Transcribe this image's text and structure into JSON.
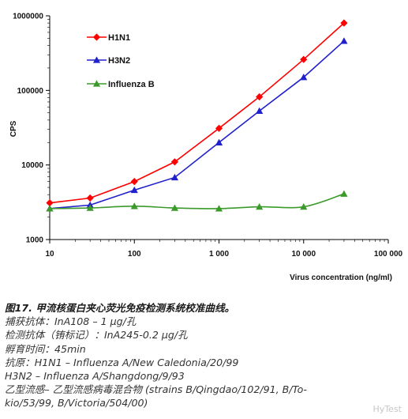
{
  "chart_data": {
    "type": "line",
    "x_scale": "log",
    "y_scale": "log",
    "xlim": [
      10,
      100000
    ],
    "ylim": [
      1000,
      1000000
    ],
    "x_ticks": [
      "10",
      "100",
      "1 000",
      "10 000",
      "100 000"
    ],
    "y_ticks": [
      "1000000",
      "100000",
      "10000",
      "1000"
    ],
    "xlabel": "Virus concentration (ng/ml)",
    "ylabel": "CPS",
    "legend_position": "top-left",
    "grid": false,
    "series": [
      {
        "name": "H1N1",
        "color": "#ff0000",
        "marker": "diamond",
        "x": [
          10,
          30,
          100,
          300,
          1000,
          3000,
          10000,
          30000
        ],
        "y": [
          3100,
          3600,
          6000,
          11000,
          31000,
          82000,
          260000,
          800000
        ]
      },
      {
        "name": "H3N2",
        "color": "#2020cc",
        "marker": "triangle",
        "x": [
          10,
          30,
          100,
          300,
          1000,
          3000,
          10000,
          30000
        ],
        "y": [
          2600,
          2900,
          4600,
          6800,
          20000,
          53000,
          150000,
          460000
        ]
      },
      {
        "name": "Influenza B",
        "color": "#3a9a2a",
        "marker": "triangle",
        "x": [
          10,
          30,
          100,
          300,
          1000,
          3000,
          10000,
          30000
        ],
        "y": [
          2600,
          2650,
          2800,
          2650,
          2600,
          2750,
          2750,
          4100
        ]
      }
    ]
  },
  "caption": {
    "title": "图17. 甲流核蛋白夹心荧光免疫检测系统校准曲线。",
    "lines": [
      "捕获抗体：InA108 – 1 μg/孔",
      "检测抗体（铕标记）：InA245-0.2 μg/孔",
      "孵育时间：45min",
      "抗原：H1N1 – Influenza A/New Caledonia/20/99",
      "H3N2 – Influenza A/Shangdong/9/93",
      "乙型流感–   乙型流感病毒混合物  (strains  B/Qingdao/102/91,  B/To-",
      "kio/53/99, B/Victoria/504/00)"
    ]
  },
  "watermark": "HyTest"
}
